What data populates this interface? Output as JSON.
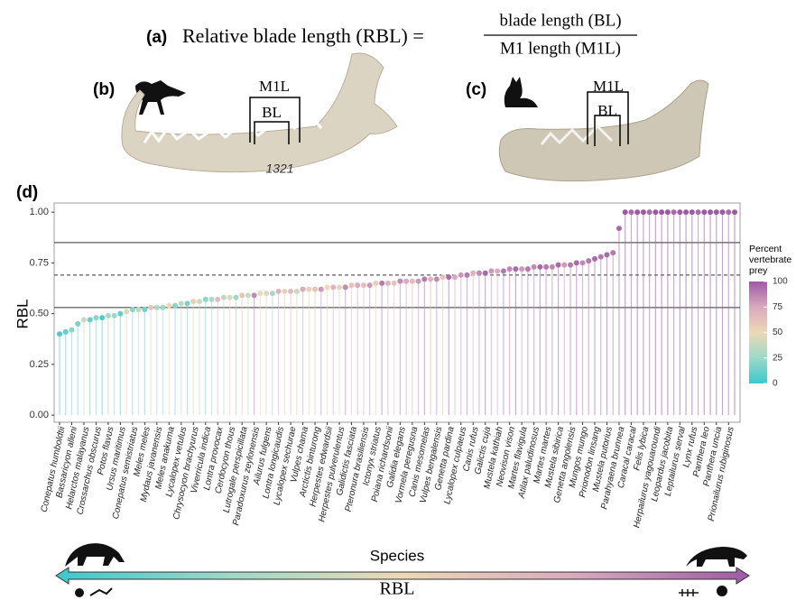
{
  "equation": {
    "label": "(a)",
    "lhs": "Relative blade length (RBL) =",
    "numerator": "blade length (BL)",
    "denominator": "M1 length (M1L)"
  },
  "panels": [
    {
      "label": "(b)",
      "m1l": "M1L",
      "bl": "BL",
      "specimen": "1321"
    },
    {
      "label": "(c)",
      "m1l": "M1L",
      "bl": "BL"
    }
  ],
  "bottom_axis": {
    "label": "RBL"
  },
  "chart_data": {
    "type": "lollipop",
    "panel_label": "(d)",
    "ylabel": "RBL",
    "xlabel": "Species",
    "ylim": [
      -0.035,
      1.045
    ],
    "yticks": [
      {
        "value": 0,
        "label": "0.00"
      },
      {
        "value": 0.25,
        "label": "0.25"
      },
      {
        "value": 0.5,
        "label": "0.50"
      },
      {
        "value": 0.75,
        "label": "0.75"
      },
      {
        "value": 1,
        "label": "1.00"
      }
    ],
    "hlines": [
      {
        "value": 0.85,
        "style": "solid"
      },
      {
        "value": 0.69,
        "style": "dashed"
      },
      {
        "value": 0.53,
        "style": "solid"
      }
    ],
    "categories": [
      "Conepatus humboldtii",
      null,
      "Bassaricyon alleni",
      null,
      "Helarctos malayanus",
      null,
      "Crossarchus obscurus",
      null,
      "Potos flavus",
      null,
      "Ursus maritimus",
      null,
      "Conepatus semistriatus",
      null,
      "Meles meles",
      null,
      "Mydaus javanensis",
      null,
      "Meles anakuma",
      null,
      "Lycalopex vetulus",
      null,
      "Chrysocyon brachyurus",
      null,
      "Viverricula indica",
      null,
      "Lontra provocax",
      null,
      "Cerdocyon thous",
      null,
      "Lutrogale perspicillata",
      null,
      "Paradoxurus zeylonensis",
      null,
      "Ailurus fulgens",
      null,
      "Lontra longicaudis",
      null,
      "Lycalopex sechurae",
      null,
      "Vulpes chama",
      null,
      "Arctictis binturong",
      null,
      "Herpestes edwardsii",
      null,
      "Herpestes pulverulentus",
      null,
      "Galidictis fasciata",
      null,
      "Pteronura brasiliensis",
      null,
      "Ictonyx striatus",
      null,
      "Poiana richardsonii",
      null,
      "Galidia elegans",
      null,
      "Vormela peregusna",
      null,
      "Canis mesomelas",
      null,
      "Vulpes bengalensis",
      null,
      "Genetta pardina",
      null,
      "Lycalopex culpaeus",
      null,
      "Canis rufus",
      null,
      "Galictis cuja",
      null,
      "Mustela kathiah",
      null,
      "Neovison vison",
      null,
      "Martes flavigula",
      null,
      "Atilax paludinosus",
      null,
      "Martes martes",
      null,
      "Mustela sibirica",
      null,
      "Genetta angolensis",
      null,
      "Mungos mungo",
      null,
      "Prionodon linsang",
      null,
      "Mustela putorius",
      null,
      "Parahyaena brunnea",
      null,
      "Caracal caracal",
      null,
      "Felis lybica",
      null,
      "Herpailurus yagouaroundi",
      null,
      "Leopardus jacobita",
      null,
      "Leptailurus serval",
      null,
      "Lynx rufus",
      null,
      "Panthera leo",
      null,
      "Panthera uncia",
      null,
      "Prionailurus rubiginosus",
      null
    ],
    "values": [
      0.4,
      0.41,
      0.42,
      0.45,
      0.47,
      0.47,
      0.48,
      0.48,
      0.49,
      0.49,
      0.5,
      0.51,
      0.52,
      0.52,
      0.52,
      0.53,
      0.53,
      0.53,
      0.54,
      0.54,
      0.55,
      0.55,
      0.56,
      0.56,
      0.57,
      0.57,
      0.57,
      0.58,
      0.58,
      0.58,
      0.59,
      0.59,
      0.59,
      0.6,
      0.6,
      0.6,
      0.61,
      0.61,
      0.61,
      0.61,
      0.62,
      0.62,
      0.62,
      0.62,
      0.63,
      0.63,
      0.63,
      0.63,
      0.64,
      0.64,
      0.64,
      0.64,
      0.65,
      0.65,
      0.65,
      0.65,
      0.66,
      0.66,
      0.66,
      0.66,
      0.67,
      0.67,
      0.67,
      0.68,
      0.68,
      0.68,
      0.69,
      0.69,
      0.7,
      0.7,
      0.7,
      0.71,
      0.71,
      0.71,
      0.72,
      0.72,
      0.72,
      0.72,
      0.73,
      0.73,
      0.73,
      0.73,
      0.74,
      0.74,
      0.74,
      0.75,
      0.75,
      0.76,
      0.77,
      0.78,
      0.79,
      0.8,
      0.92,
      1,
      1,
      1,
      1,
      1,
      1,
      1,
      1,
      1,
      1,
      1,
      1,
      1,
      1,
      1,
      1,
      1,
      1,
      1
    ],
    "color_values": [
      5,
      10,
      20,
      15,
      40,
      10,
      20,
      5,
      30,
      25,
      10,
      45,
      20,
      35,
      15,
      60,
      30,
      25,
      50,
      20,
      35,
      15,
      55,
      40,
      20,
      30,
      65,
      35,
      45,
      25,
      60,
      40,
      85,
      50,
      45,
      30,
      70,
      55,
      65,
      40,
      75,
      55,
      60,
      80,
      50,
      70,
      45,
      85,
      60,
      75,
      65,
      80,
      55,
      90,
      70,
      60,
      85,
      75,
      65,
      80,
      90,
      70,
      85,
      60,
      95,
      75,
      80,
      90,
      70,
      85,
      95,
      80,
      75,
      90,
      85,
      95,
      80,
      90,
      85,
      95,
      90,
      85,
      95,
      80,
      90,
      95,
      85,
      90,
      95,
      90,
      95,
      90,
      95,
      100,
      95,
      100,
      100,
      95,
      100,
      100,
      100,
      95,
      100,
      100,
      100,
      95,
      100,
      100,
      100,
      100,
      95,
      100
    ],
    "colorbar": {
      "title_lines": [
        "Percent",
        "vertebrate",
        "prey"
      ],
      "lim": [
        0,
        100
      ],
      "ticks": [
        0,
        25,
        50,
        75,
        100
      ],
      "colors": [
        "#3cc8cc",
        "#9cd9c8",
        "#ecd9b6",
        "#d9a9bd",
        "#9c5aa4"
      ]
    }
  }
}
